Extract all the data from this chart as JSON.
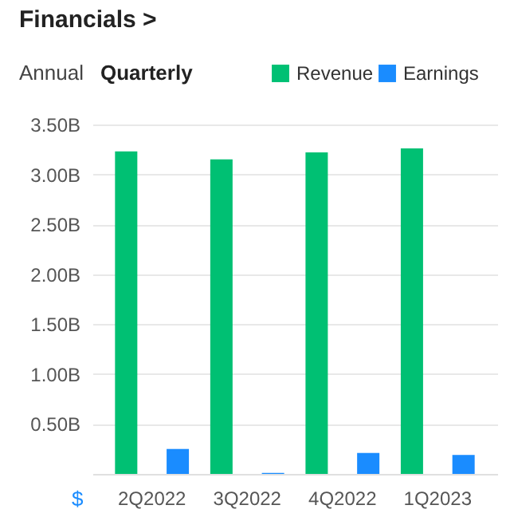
{
  "chart_data": {
    "type": "bar",
    "title": "Financials >",
    "annotations": [
      "Annual",
      "Quarterly",
      {
        "text": "$"
      }
    ],
    "categories": [
      "2Q2022",
      "3Q2022",
      "4Q2022",
      "1Q2023"
    ],
    "series": [
      {
        "name": "Revenue",
        "color": "#00c073",
        "values": [
          3.23,
          3.15,
          3.22,
          3.26
        ]
      },
      {
        "name": "Earnings",
        "color": "#1a8cff",
        "values": [
          0.25,
          0.01,
          0.21,
          0.19
        ]
      }
    ],
    "ylim": [
      0,
      3.5
    ],
    "yticks": [
      {
        "value": 0.5,
        "label": "0.50B"
      },
      {
        "value": 1.0,
        "label": "1.00B"
      },
      {
        "value": 1.5,
        "label": "1.50B"
      },
      {
        "value": 2.0,
        "label": "2.00B"
      },
      {
        "value": 2.5,
        "label": "2.50B"
      },
      {
        "value": 3.0,
        "label": "3.00B"
      },
      {
        "value": 3.5,
        "label": "3.50B"
      }
    ],
    "grid": "y",
    "legend": "top right"
  }
}
